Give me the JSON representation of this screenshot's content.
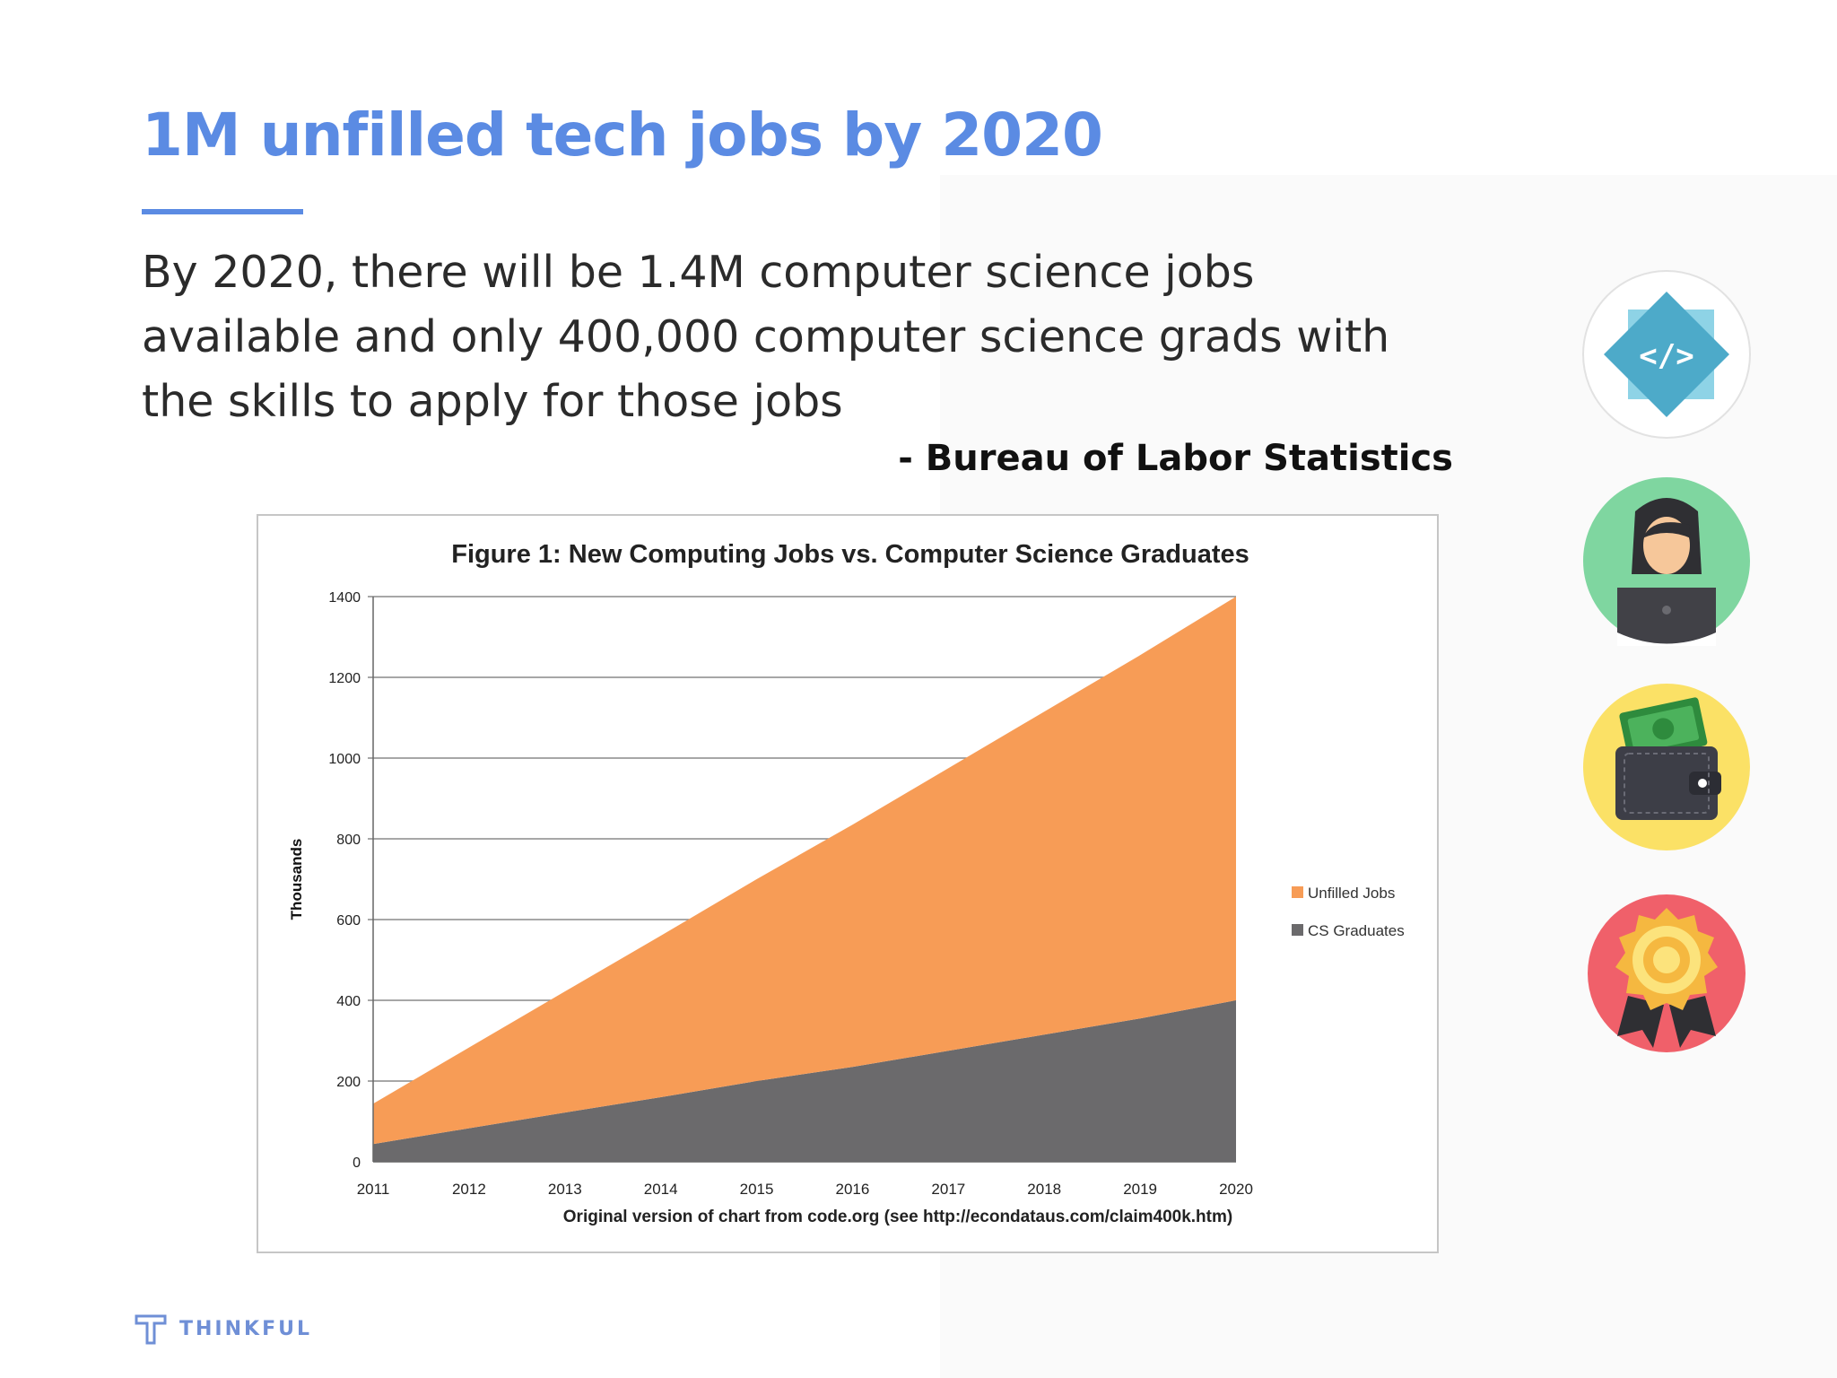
{
  "slide": {
    "title": "1M unfilled tech jobs by 2020",
    "body": "By 2020, there will be 1.4M computer science jobs available and only 400,000 computer science grads with the skills to apply for those jobs",
    "attribution": "- Bureau of Labor Statistics",
    "brand": "THINKFUL"
  },
  "icons": [
    "code-icon",
    "person-at-laptop-icon",
    "wallet-with-cash-icon",
    "award-badge-icon"
  ],
  "chart_data": {
    "type": "area",
    "title": "Figure 1: New Computing Jobs vs. Computer Science Graduates",
    "xlabel": "Original version of chart from code.org (see http://econdataus.com/claim400k.htm)",
    "ylabel": "Thousands",
    "x": [
      "2011",
      "2012",
      "2013",
      "2014",
      "2015",
      "2016",
      "2017",
      "2018",
      "2019",
      "2020"
    ],
    "ylim": [
      0,
      1400
    ],
    "yticks": [
      "0",
      "200",
      "400",
      "600",
      "800",
      "1000",
      "1200",
      "1400"
    ],
    "stacked": true,
    "grid": true,
    "legend_position": "right",
    "series": [
      {
        "name": "Unfilled Jobs",
        "color": "#f79c56",
        "values": [
          100,
          200,
          300,
          400,
          500,
          600,
          700,
          800,
          900,
          1000
        ]
      },
      {
        "name": "CS Graduates",
        "color": "#6b6a6c",
        "values": [
          44,
          83,
          122,
          160,
          200,
          235,
          275,
          315,
          355,
          400
        ]
      }
    ]
  }
}
